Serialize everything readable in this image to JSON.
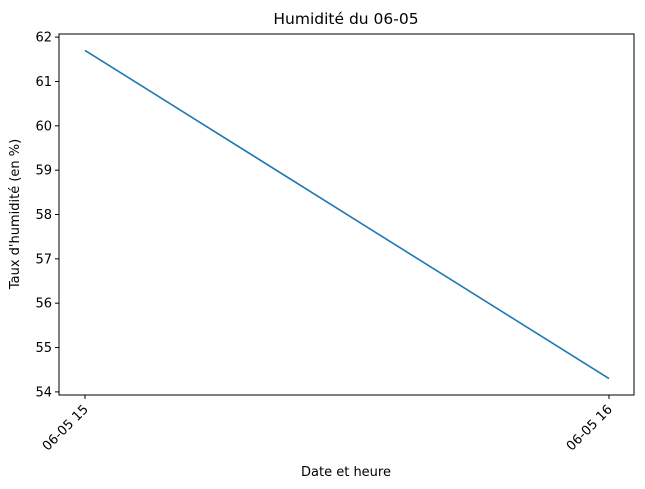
{
  "chart_data": {
    "type": "line",
    "title": "Humidité du 06-05",
    "xlabel": "Date et heure",
    "ylabel": "Taux d'humidité (en %)",
    "categories": [
      "06-05 15",
      "06-05 16"
    ],
    "series": [
      {
        "values": [
          61.7,
          54.3
        ],
        "color": "#1f77b4"
      }
    ],
    "yticks": [
      54,
      55,
      56,
      57,
      58,
      59,
      60,
      61,
      62
    ],
    "ylim": [
      53.93,
      62.07
    ],
    "grid": false,
    "legend": "none"
  }
}
